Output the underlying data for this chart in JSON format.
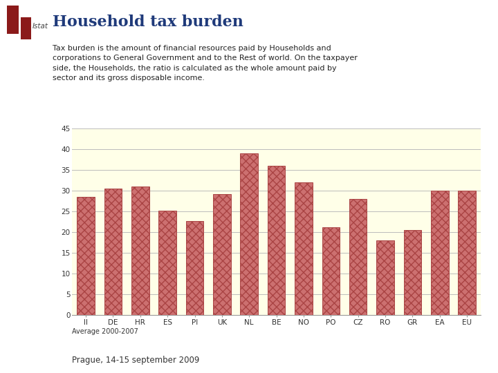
{
  "title": "Household tax burden",
  "subtitle": "Tax burden is the amount of financial resources paid by Households and\ncorporations to General Government and to the Rest of world. On the taxpayer\nside, the Households, the ratio is calculated as the whole amount paid by\nsector and its gross disposable income.",
  "footer": "Average 2000-2007",
  "footer_note": "Prague, 14-15 september 2009",
  "categories": [
    "II",
    "DE",
    "HR",
    "ES",
    "PI",
    "UK",
    "NL",
    "BE",
    "NO",
    "PO",
    "CZ",
    "RO",
    "GR",
    "EA",
    "EU"
  ],
  "values": [
    28.5,
    30.5,
    31.0,
    25.2,
    22.8,
    29.2,
    39.0,
    36.0,
    32.0,
    21.3,
    28.0,
    18.0,
    20.5,
    30.0,
    30.0
  ],
  "bar_face_color": "#cc7070",
  "bar_edge_color": "#aa4444",
  "chart_bg": "#ffffe8",
  "outer_bg": "#ffffff",
  "title_color": "#1f3a7a",
  "left_bar_color": "#7a2020",
  "grid_color": "#bbbbbb",
  "ylim": [
    0,
    45
  ],
  "yticks": [
    0,
    5,
    10,
    15,
    20,
    25,
    30,
    35,
    40,
    45
  ],
  "title_fontsize": 16,
  "tick_fontsize": 7.5,
  "subtitle_fontsize": 8.0,
  "footer_fontsize": 7.0,
  "footnote_fontsize": 8.5
}
